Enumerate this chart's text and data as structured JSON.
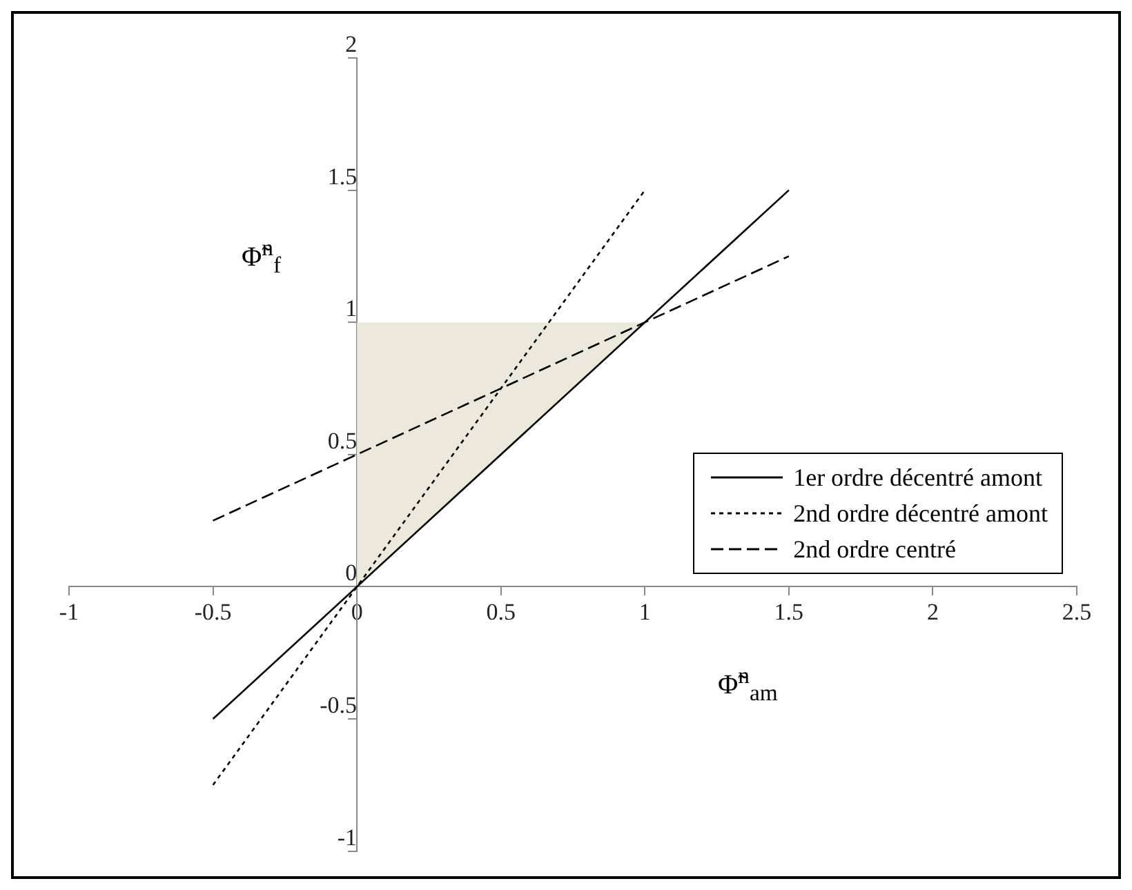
{
  "chart_data": {
    "type": "line",
    "xlabel": "Φ̃$^{n}$$_{am}$",
    "ylabel": "Φ̃$^{n}$$_{f}$",
    "xlim": [
      -1,
      2.5
    ],
    "xticks": [
      -1,
      -0.5,
      0,
      0.5,
      1,
      1.5,
      2,
      2.5
    ],
    "ylim": [
      -1,
      2
    ],
    "yticks": [
      -1,
      -0.5,
      0,
      0.5,
      1,
      1.5,
      2
    ],
    "grid": false,
    "legend": "right",
    "marker": "none",
    "series": [
      {
        "type": "area",
        "color": "#ece8dc",
        "x": [
          0,
          0,
          1
        ],
        "values": [
          0,
          1,
          1
        ]
      },
      {
        "name": "1er ordre décentré amont",
        "color": "#000000",
        "line_style": "solid",
        "x": [
          -0.5,
          1.5
        ],
        "values": [
          -0.5,
          1.5
        ]
      },
      {
        "name": "2nd ordre décentré amont",
        "color": "#000000",
        "line_style": "dotted",
        "x": [
          -0.5,
          1
        ],
        "values": [
          -0.75,
          1.5
        ]
      },
      {
        "name": "2nd ordre centré",
        "color": "#000000",
        "line_style": "dashed",
        "x": [
          -0.5,
          1.5
        ],
        "values": [
          0.25,
          1.25
        ]
      }
    ]
  }
}
